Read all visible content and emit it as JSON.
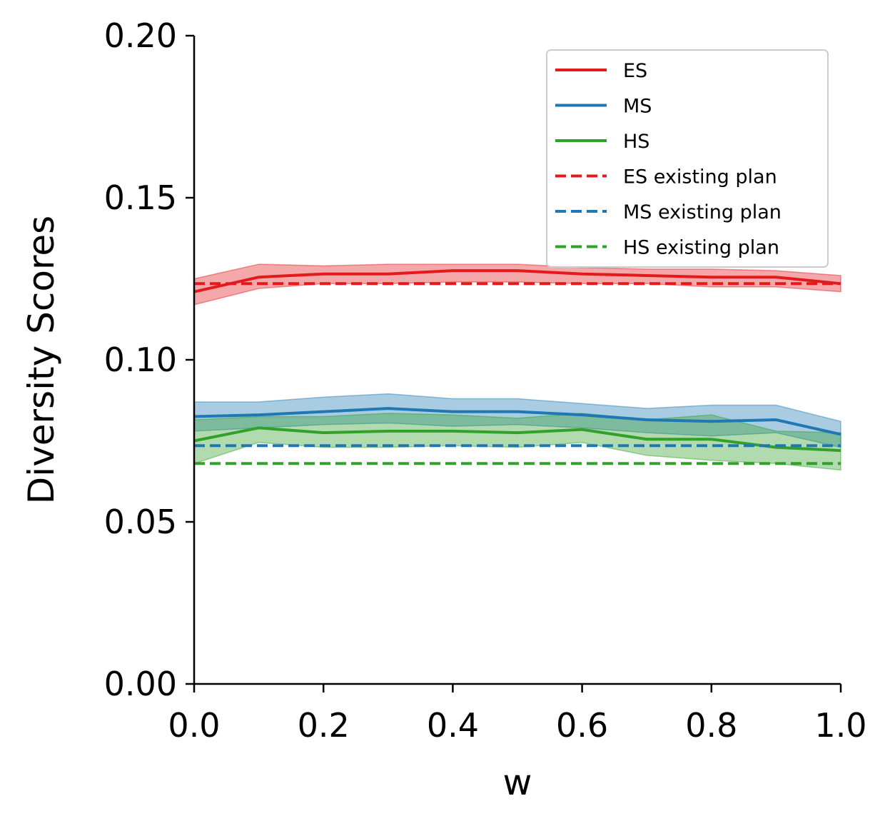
{
  "chart_data": {
    "type": "line",
    "title": "",
    "xlabel": "w",
    "ylabel": "Diversity Scores",
    "xlim": [
      0.0,
      1.0
    ],
    "ylim": [
      0.0,
      0.2
    ],
    "xticks": [
      "0.0",
      "0.2",
      "0.4",
      "0.6",
      "0.8",
      "1.0"
    ],
    "yticks": [
      "0.00",
      "0.05",
      "0.10",
      "0.15",
      "0.20"
    ],
    "grid": false,
    "legend_position": "top-right",
    "x": [
      0.0,
      0.1,
      0.2,
      0.3,
      0.4,
      0.5,
      0.6,
      0.7,
      0.8,
      0.9,
      1.0
    ],
    "series": [
      {
        "name": "ES",
        "color": "#e31a1c",
        "style": "solid",
        "values": [
          0.121,
          0.1255,
          0.1265,
          0.1265,
          0.1275,
          0.1275,
          0.1265,
          0.126,
          0.1255,
          0.1255,
          0.1235
        ],
        "lower": [
          0.117,
          0.122,
          0.1235,
          0.1235,
          0.124,
          0.124,
          0.1235,
          0.1235,
          0.1225,
          0.1225,
          0.121
        ],
        "upper": [
          0.125,
          0.1295,
          0.129,
          0.1295,
          0.1295,
          0.1295,
          0.1285,
          0.128,
          0.128,
          0.1275,
          0.126
        ]
      },
      {
        "name": "MS",
        "color": "#1f78b4",
        "style": "solid",
        "values": [
          0.0825,
          0.083,
          0.084,
          0.085,
          0.084,
          0.084,
          0.083,
          0.0815,
          0.081,
          0.0815,
          0.077
        ],
        "lower": [
          0.078,
          0.079,
          0.08,
          0.0805,
          0.0795,
          0.08,
          0.079,
          0.0775,
          0.0765,
          0.0775,
          0.073
        ],
        "upper": [
          0.087,
          0.087,
          0.0885,
          0.0895,
          0.088,
          0.088,
          0.0865,
          0.085,
          0.086,
          0.086,
          0.081
        ]
      },
      {
        "name": "HS",
        "color": "#33a02c",
        "style": "solid",
        "values": [
          0.075,
          0.079,
          0.0775,
          0.078,
          0.078,
          0.0775,
          0.0785,
          0.0755,
          0.0755,
          0.073,
          0.072
        ],
        "lower": [
          0.068,
          0.0745,
          0.073,
          0.073,
          0.0735,
          0.073,
          0.0745,
          0.0705,
          0.069,
          0.068,
          0.066
        ],
        "upper": [
          0.0815,
          0.0825,
          0.0825,
          0.0835,
          0.083,
          0.082,
          0.0835,
          0.0815,
          0.083,
          0.078,
          0.0775
        ]
      },
      {
        "name": "ES existing plan",
        "color": "#e31a1c",
        "style": "dashed",
        "values": [
          0.1235,
          0.1235,
          0.1235,
          0.1235,
          0.1235,
          0.1235,
          0.1235,
          0.1235,
          0.1235,
          0.1235,
          0.1235
        ]
      },
      {
        "name": "MS existing plan",
        "color": "#1f78b4",
        "style": "dashed",
        "values": [
          0.0735,
          0.0735,
          0.0735,
          0.0735,
          0.0735,
          0.0735,
          0.0735,
          0.0735,
          0.0735,
          0.0735,
          0.0735
        ]
      },
      {
        "name": "HS existing plan",
        "color": "#33a02c",
        "style": "dashed",
        "values": [
          0.068,
          0.068,
          0.068,
          0.068,
          0.068,
          0.068,
          0.068,
          0.068,
          0.068,
          0.068,
          0.068
        ]
      }
    ]
  }
}
